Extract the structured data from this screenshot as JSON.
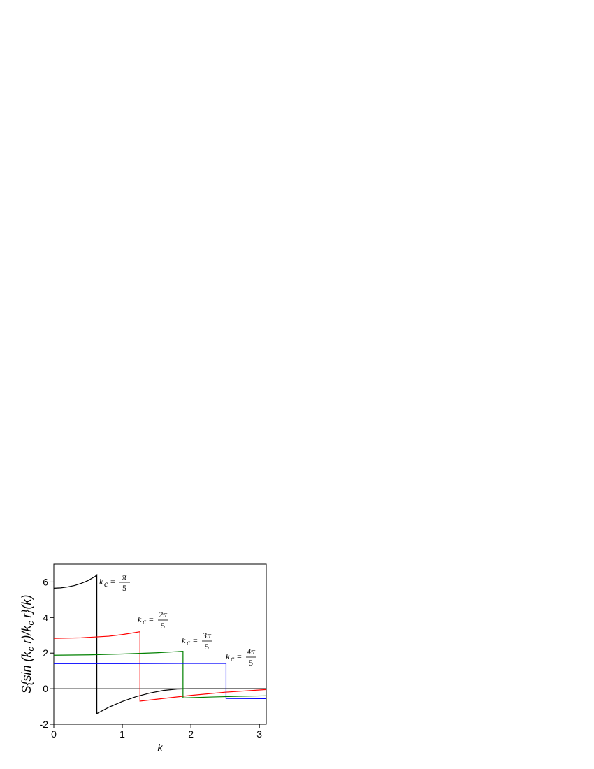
{
  "chart_data": {
    "type": "line",
    "xlabel": "k",
    "ylabel": [
      "S{sin (k",
      "c",
      " r)/k",
      "c",
      " r}(k)"
    ],
    "xlim": [
      0,
      3.1
    ],
    "ylim": [
      -2,
      7
    ],
    "xticks": [
      0,
      1,
      2,
      3
    ],
    "yticks": [
      -2,
      0,
      2,
      4,
      6
    ],
    "zero_line": true,
    "series": [
      {
        "color": "#000000",
        "x": [
          0,
          0.1,
          0.2,
          0.3,
          0.4,
          0.5,
          0.6,
          0.628,
          0.628,
          0.8,
          1.0,
          1.2,
          1.4,
          1.6,
          1.8,
          2.0,
          2.5,
          3.1
        ],
        "values": [
          5.65,
          5.67,
          5.72,
          5.8,
          5.92,
          6.08,
          6.3,
          6.4,
          -1.4,
          -1.05,
          -0.72,
          -0.45,
          -0.25,
          -0.1,
          -0.02,
          0,
          0,
          0
        ]
      },
      {
        "color": "#ff0000",
        "x": [
          0,
          0.4,
          0.8,
          1.0,
          1.257,
          1.257,
          1.6,
          2.0,
          2.5,
          3.1
        ],
        "values": [
          2.83,
          2.86,
          2.95,
          3.04,
          3.2,
          -0.7,
          -0.55,
          -0.38,
          -0.2,
          -0.05
        ]
      },
      {
        "color": "#008000",
        "x": [
          0,
          0.5,
          1.0,
          1.5,
          1.885,
          1.885,
          2.3,
          2.7,
          3.1
        ],
        "values": [
          1.88,
          1.9,
          1.95,
          2.02,
          2.1,
          -0.52,
          -0.47,
          -0.43,
          -0.4
        ]
      },
      {
        "color": "#0000ff",
        "x": [
          0,
          1,
          2,
          2.513,
          2.513,
          3.1
        ],
        "values": [
          1.41,
          1.41,
          1.42,
          1.42,
          -0.55,
          -0.56
        ]
      }
    ],
    "annotations": [
      {
        "lhs": "k",
        "sub": "c",
        "eq": "=",
        "num": "π",
        "den": "5"
      },
      {
        "lhs": "k",
        "sub": "c",
        "eq": "=",
        "num": "2π",
        "den": "5"
      },
      {
        "lhs": "k",
        "sub": "c",
        "eq": "=",
        "num": "3π",
        "den": "5"
      },
      {
        "lhs": "k",
        "sub": "c",
        "eq": "=",
        "num": "4π",
        "den": "5"
      }
    ]
  }
}
